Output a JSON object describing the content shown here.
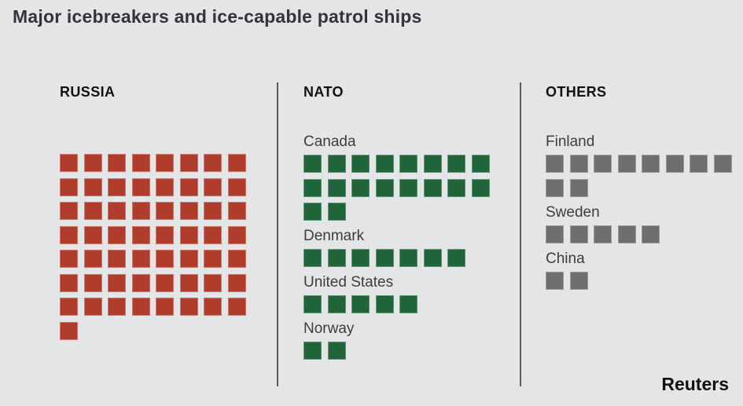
{
  "title": "Major icebreakers and ice-capable patrol ships",
  "source": "Reuters",
  "colors": {
    "background": "#e4e5e7",
    "russia_square": "#b03c2b",
    "nato_square": "#206539",
    "others_square": "#6f6f6f",
    "divider": "#5a5a5a",
    "title_text": "#333538",
    "header_text": "#111111",
    "label_text": "#3d3d3d"
  },
  "chart_data": {
    "type": "waffle",
    "title": "Major icebreakers and ice-capable patrol ships",
    "unit": "ships (1 square = 1 ship)",
    "columns_per_row": 8,
    "legend_position": "none",
    "groups": [
      {
        "label": "RUSSIA",
        "color": "#b03c2b",
        "total": 57,
        "countries": [
          {
            "name": "",
            "value": 57
          }
        ]
      },
      {
        "label": "NATO",
        "color": "#206539",
        "total": 32,
        "countries": [
          {
            "name": "Canada",
            "value": 18
          },
          {
            "name": "Denmark",
            "value": 7
          },
          {
            "name": "United States",
            "value": 5
          },
          {
            "name": "Norway",
            "value": 2
          }
        ]
      },
      {
        "label": "OTHERS",
        "color": "#6f6f6f",
        "total": 17,
        "countries": [
          {
            "name": "Finland",
            "value": 10
          },
          {
            "name": "Sweden",
            "value": 5
          },
          {
            "name": "China",
            "value": 2
          }
        ]
      }
    ]
  }
}
